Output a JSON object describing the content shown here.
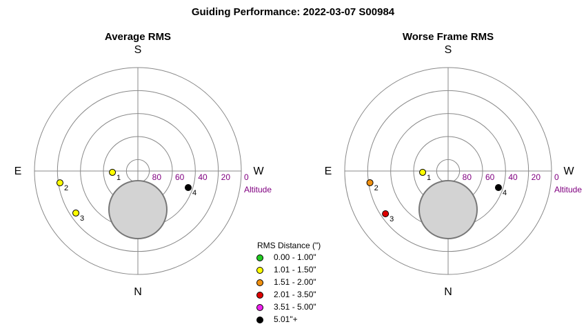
{
  "title": "Guiding Performance: 2022-03-07  S00984",
  "chart_data": [
    {
      "type": "polar",
      "title": "Average RMS",
      "compass": {
        "south": "S",
        "east": "E",
        "west": "W",
        "north": "N"
      },
      "r_label": "Altitude",
      "rlim": [
        90,
        0
      ],
      "rticks": [
        80,
        60,
        40,
        20,
        0
      ],
      "points": [
        {
          "label": "1",
          "az": 87,
          "alt": 67.8,
          "color": "#ffff00"
        },
        {
          "label": "2",
          "az": 81.4,
          "alt": 21.4,
          "color": "#ffff00"
        },
        {
          "label": "3",
          "az": 55.9,
          "alt": 24.8,
          "color": "#ffff00"
        },
        {
          "label": "4",
          "az": 288.2,
          "alt": 43.9,
          "color": "#000000"
        }
      ]
    },
    {
      "type": "polar",
      "title": "Worse Frame RMS",
      "compass": {
        "south": "S",
        "east": "E",
        "west": "W",
        "north": "N"
      },
      "r_label": "Altitude",
      "rlim": [
        90,
        0
      ],
      "rticks": [
        80,
        60,
        40,
        20,
        0
      ],
      "points": [
        {
          "label": "1",
          "az": 87,
          "alt": 67.8,
          "color": "#ffff00"
        },
        {
          "label": "2",
          "az": 81.5,
          "alt": 21.2,
          "color": "#f09010"
        },
        {
          "label": "3",
          "az": 55.7,
          "alt": 24.0,
          "color": "#dd0000"
        },
        {
          "label": "4",
          "az": 288.2,
          "alt": 43.9,
          "color": "#000000"
        }
      ]
    }
  ],
  "legend": {
    "title": "RMS Distance (\")",
    "items": [
      {
        "label": "0.00 - 1.00\"",
        "color": "#22cc22"
      },
      {
        "label": "1.01 - 1.50\"",
        "color": "#ffff00"
      },
      {
        "label": "1.51 - 2.00\"",
        "color": "#f09010"
      },
      {
        "label": "2.01 - 3.50\"",
        "color": "#dd0000"
      },
      {
        "label": "3.51 - 5.00\"",
        "color": "#ee22ee"
      },
      {
        "label": "5.01\"+",
        "color": "#000000"
      }
    ]
  }
}
